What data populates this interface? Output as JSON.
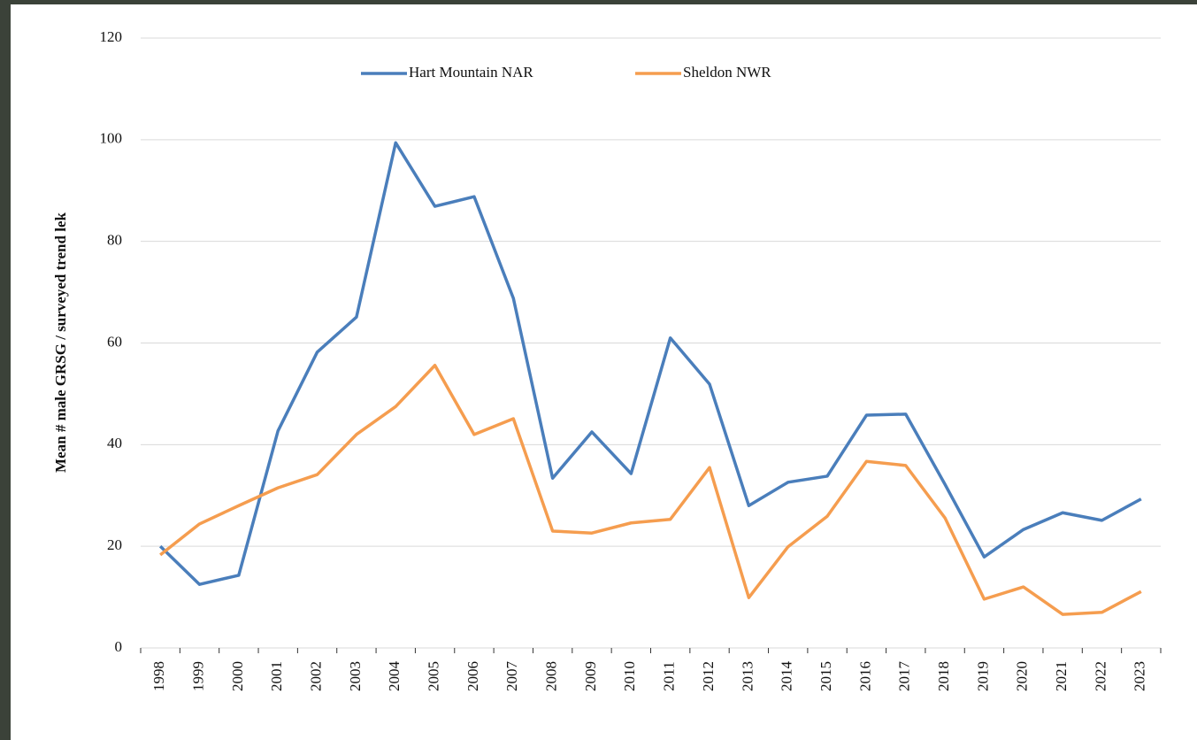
{
  "chart_data": {
    "type": "line",
    "y_label": "Mean # male GRSG / surveyed trend lek",
    "categories": [
      "1998",
      "1999",
      "2000",
      "2001",
      "2002",
      "2003",
      "2004",
      "2005",
      "2006",
      "2007",
      "2008",
      "2009",
      "2010",
      "2011",
      "2012",
      "2013",
      "2014",
      "2015",
      "2016",
      "2017",
      "2018",
      "2019",
      "2020",
      "2021",
      "2022",
      "2023"
    ],
    "series": [
      {
        "name": "Hart Mountain NAR",
        "color": "#4a7ebb",
        "values": [
          20,
          12.5,
          14.3,
          42.7,
          58.2,
          65.1,
          99.4,
          86.9,
          88.8,
          68.8,
          33.4,
          42.5,
          34.3,
          61,
          51.9,
          28,
          32.6,
          33.8,
          45.8,
          46,
          32.2,
          17.9,
          23.3,
          26.6,
          25.1,
          29.3
        ]
      },
      {
        "name": "Sheldon NWR",
        "color": "#f59d4f",
        "values": [
          18.3,
          24.4,
          28,
          31.5,
          34.1,
          42,
          47.5,
          55.6,
          42,
          45.1,
          23,
          22.6,
          24.6,
          25.3,
          35.5,
          9.9,
          19.9,
          25.9,
          36.7,
          35.9,
          25.6,
          9.6,
          12,
          6.6,
          7,
          11.1
        ]
      }
    ],
    "ylim": [
      0,
      120
    ],
    "yticks": [
      0,
      20,
      40,
      60,
      80,
      100,
      120
    ],
    "grid": true,
    "legend": "top"
  }
}
